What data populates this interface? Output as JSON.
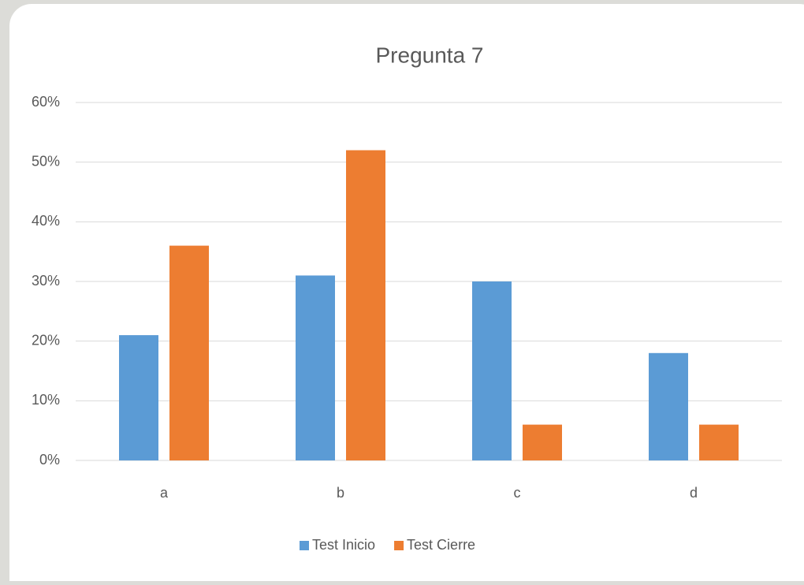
{
  "chart_data": {
    "type": "bar",
    "title": "Pregunta 7",
    "categories": [
      "a",
      "b",
      "c",
      "d"
    ],
    "series": [
      {
        "name": "Test Inicio",
        "color": "#5b9bd5",
        "values": [
          21,
          31,
          30,
          18
        ]
      },
      {
        "name": "Test Cierre",
        "color": "#ed7d31",
        "values": [
          36,
          52,
          6,
          6
        ]
      }
    ],
    "ylim": [
      0,
      60
    ],
    "yticks": [
      {
        "value": 0,
        "label": "0%"
      },
      {
        "value": 10,
        "label": "10%"
      },
      {
        "value": 20,
        "label": "20%"
      },
      {
        "value": 30,
        "label": "30%"
      },
      {
        "value": 40,
        "label": "40%"
      },
      {
        "value": 50,
        "label": "50%"
      },
      {
        "value": 60,
        "label": "60%"
      }
    ],
    "grid": true,
    "legend": "bottom"
  }
}
